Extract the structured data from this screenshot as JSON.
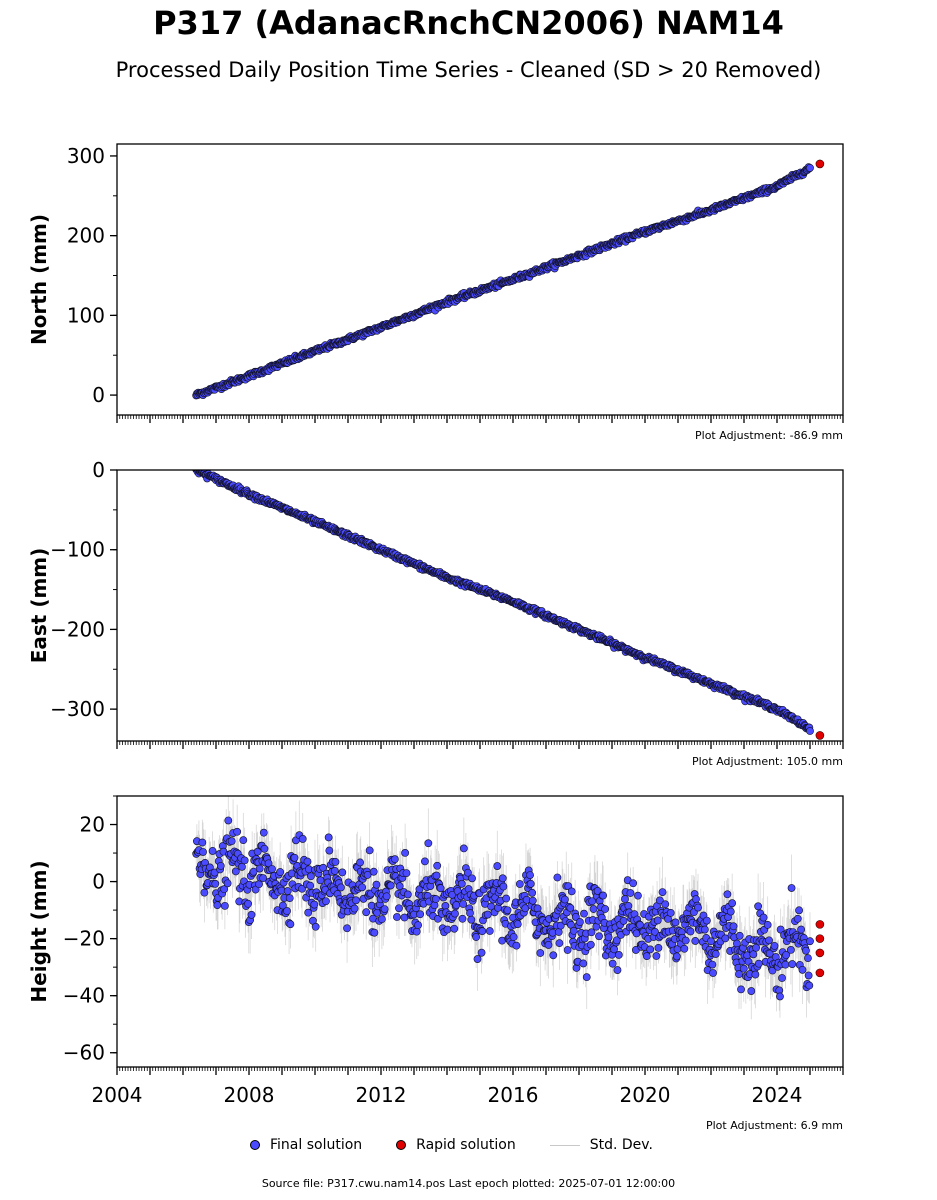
{
  "title": "P317 (AdanacRnchCN2006) NAM14",
  "subtitle": "Processed Daily Position Time Series - Cleaned (SD > 20 Removed)",
  "legend": {
    "final": "Final solution",
    "rapid": "Rapid solution",
    "std": "Std. Dev."
  },
  "source_text": "Source file: P317.cwu.nam14.pos  Last epoch plotted: 2025-07-01 12:00:00",
  "colors": {
    "final": "#4a4aff",
    "rapid": "#e00000",
    "std": "#bdbdbd",
    "edge": "#000000"
  },
  "chart_data": [
    {
      "type": "scatter",
      "ylabel": "North (mm)",
      "adjustment": "Plot Adjustment: -86.9 mm",
      "xlim": [
        2004.0,
        2026.0
      ],
      "ylim": [
        -25,
        315
      ],
      "yticks": [
        0,
        100,
        200,
        300
      ],
      "trend": {
        "start": [
          2006.4,
          0
        ],
        "end": [
          2025.3,
          290
        ]
      },
      "noise": 2.5,
      "std_scale": 2.5,
      "series": [
        {
          "x": [
            2006.4,
            2008.0,
            2010.0,
            2012.0,
            2014.0,
            2016.0,
            2018.0,
            2020.0,
            2022.0,
            2024.0,
            2025.0
          ],
          "values": [
            0,
            24,
            55,
            85,
            117,
            145,
            175,
            205,
            232,
            262,
            285
          ]
        },
        {
          "x": [
            2025.3
          ],
          "values": [
            290
          ]
        }
      ]
    },
    {
      "type": "scatter",
      "ylabel": "East (mm)",
      "adjustment": "Plot Adjustment: 105.0 mm",
      "xlim": [
        2004.0,
        2026.0
      ],
      "ylim": [
        -340,
        0
      ],
      "yticks": [
        0,
        -100,
        -200,
        -300
      ],
      "trend": {
        "start": [
          2006.4,
          0
        ],
        "end": [
          2025.3,
          -333
        ]
      },
      "noise": 2.5,
      "std_scale": 2.5,
      "series": [
        {
          "x": [
            2006.4,
            2008.0,
            2010.0,
            2012.0,
            2014.0,
            2016.0,
            2018.0,
            2020.0,
            2022.0,
            2024.0,
            2025.0
          ],
          "values": [
            0,
            -30,
            -65,
            -100,
            -135,
            -165,
            -200,
            -235,
            -268,
            -300,
            -325
          ]
        },
        {
          "x": [
            2025.3
          ],
          "values": [
            -333
          ]
        }
      ]
    },
    {
      "type": "scatter",
      "ylabel": "Height (mm)",
      "adjustment": "Plot Adjustment: 6.9 mm",
      "xlim": [
        2004.0,
        2026.0
      ],
      "ylim": [
        -65,
        30
      ],
      "yticks": [
        20,
        0,
        -20,
        -40,
        -60
      ],
      "xticks": [
        2004,
        2008,
        2012,
        2016,
        2020,
        2024
      ],
      "trend": {
        "start": [
          2006.4,
          3
        ],
        "end": [
          2025.3,
          -25
        ]
      },
      "noise": 9,
      "std_scale": 9,
      "seasonal": 6,
      "series": [
        {
          "x": [
            2006.4,
            2008.0,
            2010.0,
            2012.0,
            2014.0,
            2016.0,
            2018.0,
            2020.0,
            2022.0,
            2023.5,
            2025.0
          ],
          "values": [
            5,
            3,
            0,
            -5,
            -8,
            -10,
            -15,
            -15,
            -17,
            -25,
            -22
          ]
        },
        {
          "x": [
            2025.3,
            2025.3,
            2025.3,
            2025.3
          ],
          "values": [
            -15,
            -20,
            -25,
            -32
          ]
        }
      ]
    }
  ]
}
